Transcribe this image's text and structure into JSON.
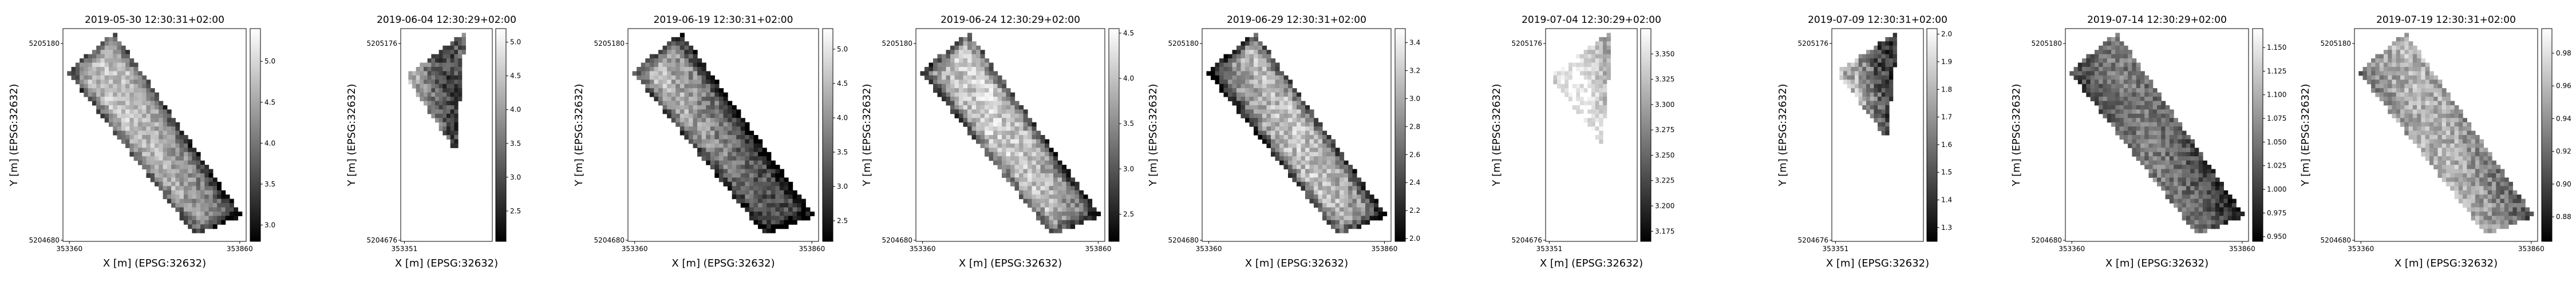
{
  "figure": {
    "background": "#ffffff",
    "colormap": "greys (dark = low, white = high)"
  },
  "chart_data": [
    {
      "type": "heatmap",
      "title": "2019-05-30 12:30:31+02:00",
      "xlabel": "X [m] (EPSG:32632)",
      "ylabel": "Y [m] (EPSG:32632)",
      "xticks": [
        "353360",
        "353860"
      ],
      "yticks": [
        "5205180",
        "5204680"
      ],
      "xlim": [
        353310,
        353910
      ],
      "ylim": [
        5204620,
        5205220
      ],
      "colorbar": {
        "min": 2.8,
        "max": 5.4,
        "ticks": [
          "3.0",
          "3.5",
          "4.0",
          "4.5",
          "5.0"
        ]
      },
      "field": {
        "shape": "full",
        "mean": 4.3,
        "amp": 0.9,
        "band_x": 0.45,
        "edge_dark": true
      }
    },
    {
      "type": "heatmap",
      "title": "2019-06-04 12:30:29+02:00",
      "xlabel": "X [m] (EPSG:32632)",
      "ylabel": "Y [m] (EPSG:32632)",
      "xticks": [
        "353351"
      ],
      "yticks": [
        "5205176",
        "5204676"
      ],
      "xlim": [
        353321,
        353531
      ],
      "ylim": [
        5204620,
        5205230
      ],
      "colorbar": {
        "min": 2.05,
        "max": 5.2,
        "ticks": [
          "2.5",
          "3.0",
          "3.5",
          "4.0",
          "4.5",
          "5.0"
        ]
      },
      "field": {
        "shape": "small",
        "mean": 3.6,
        "amp": 1.3,
        "band_x": 0.3,
        "edge_dark": false
      }
    },
    {
      "type": "heatmap",
      "title": "2019-06-19 12:30:31+02:00",
      "xlabel": "X [m] (EPSG:32632)",
      "ylabel": "Y [m] (EPSG:32632)",
      "xticks": [
        "353360",
        "353860"
      ],
      "yticks": [
        "5205180",
        "5204680"
      ],
      "xlim": [
        353310,
        353910
      ],
      "ylim": [
        5204620,
        5205220
      ],
      "colorbar": {
        "min": 2.2,
        "max": 5.3,
        "ticks": [
          "2.5",
          "3.0",
          "3.5",
          "4.0",
          "4.5",
          "5.0"
        ]
      },
      "field": {
        "shape": "full",
        "mean": 3.8,
        "amp": 1.2,
        "band_x": 0.35,
        "edge_dark": true
      }
    },
    {
      "type": "heatmap",
      "title": "2019-06-24 12:30:29+02:00",
      "xlabel": "X [m] (EPSG:32632)",
      "ylabel": "Y [m] (EPSG:32632)",
      "xticks": [
        "353360",
        "353860"
      ],
      "yticks": [
        "5205180",
        "5204680"
      ],
      "xlim": [
        353310,
        353910
      ],
      "ylim": [
        5204620,
        5205220
      ],
      "colorbar": {
        "min": 2.2,
        "max": 4.55,
        "ticks": [
          "2.5",
          "3.0",
          "3.5",
          "4.0",
          "4.5"
        ]
      },
      "field": {
        "shape": "full",
        "mean": 3.6,
        "amp": 0.9,
        "band_x": 0.5,
        "edge_dark": true
      }
    },
    {
      "type": "heatmap",
      "title": "2019-06-29 12:30:31+02:00",
      "xlabel": "X [m] (EPSG:32632)",
      "ylabel": "Y [m] (EPSG:32632)",
      "xticks": [
        "353360",
        "353860"
      ],
      "yticks": [
        "5205180",
        "5204680"
      ],
      "xlim": [
        353310,
        353910
      ],
      "ylim": [
        5204620,
        5205220
      ],
      "colorbar": {
        "min": 1.98,
        "max": 3.5,
        "ticks": [
          "2.0",
          "2.2",
          "2.4",
          "2.6",
          "2.8",
          "3.0",
          "3.2",
          "3.4"
        ]
      },
      "field": {
        "shape": "full",
        "mean": 2.8,
        "amp": 0.6,
        "band_x": 0.55,
        "edge_dark": true
      }
    },
    {
      "type": "heatmap",
      "title": "2019-07-04 12:30:29+02:00",
      "xlabel": "X [m] (EPSG:32632)",
      "ylabel": "Y [m] (EPSG:32632)",
      "xticks": [
        "353351"
      ],
      "yticks": [
        "5205176",
        "5204676"
      ],
      "xlim": [
        353321,
        353531
      ],
      "ylim": [
        5204620,
        5205230
      ],
      "colorbar": {
        "min": 3.165,
        "max": 3.375,
        "ticks": [
          "3.175",
          "3.200",
          "3.225",
          "3.250",
          "3.275",
          "3.300",
          "3.325",
          "3.350"
        ]
      },
      "field": {
        "shape": "small",
        "mean": 3.33,
        "amp": 0.06,
        "band_x": 0.5,
        "edge_dark": false
      }
    },
    {
      "type": "heatmap",
      "title": "2019-07-09 12:30:31+02:00",
      "xlabel": "X [m] (EPSG:32632)",
      "ylabel": "Y [m] (EPSG:32632)",
      "xticks": [
        "353351"
      ],
      "yticks": [
        "5205176",
        "5204676"
      ],
      "xlim": [
        353321,
        353531
      ],
      "ylim": [
        5204620,
        5205230
      ],
      "colorbar": {
        "min": 1.25,
        "max": 2.02,
        "ticks": [
          "1.3",
          "1.4",
          "1.5",
          "1.6",
          "1.7",
          "1.8",
          "1.9",
          "2.0"
        ]
      },
      "field": {
        "shape": "small",
        "mean": 1.6,
        "amp": 0.35,
        "band_x": 0.4,
        "edge_dark": false
      }
    },
    {
      "type": "heatmap",
      "title": "2019-07-14 12:30:29+02:00",
      "xlabel": "X [m] (EPSG:32632)",
      "ylabel": "Y [m] (EPSG:32632)",
      "xticks": [
        "353360",
        "353860"
      ],
      "yticks": [
        "5205180",
        "5204680"
      ],
      "xlim": [
        353310,
        353910
      ],
      "ylim": [
        5204620,
        5205220
      ],
      "colorbar": {
        "min": 0.945,
        "max": 1.17,
        "ticks": [
          "0.950",
          "0.975",
          "1.000",
          "1.025",
          "1.050",
          "1.075",
          "1.100",
          "1.125",
          "1.150"
        ]
      },
      "field": {
        "shape": "full",
        "mean": 1.01,
        "amp": 0.08,
        "band_x": 0.5,
        "edge_dark": false
      }
    },
    {
      "type": "heatmap",
      "title": "2019-07-19 12:30:31+02:00",
      "xlabel": "X [m] (EPSG:32632)",
      "ylabel": "Y [m] (EPSG:32632)",
      "xticks": [
        "353360",
        "353860"
      ],
      "yticks": [
        "5205180",
        "5204680"
      ],
      "xlim": [
        353310,
        353910
      ],
      "ylim": [
        5204620,
        5205220
      ],
      "colorbar": {
        "min": 0.865,
        "max": 0.995,
        "ticks": [
          "0.88",
          "0.90",
          "0.92",
          "0.94",
          "0.96",
          "0.98"
        ]
      },
      "field": {
        "shape": "full",
        "mean": 0.93,
        "amp": 0.05,
        "band_x": 0.5,
        "edge_dark": false
      }
    }
  ]
}
